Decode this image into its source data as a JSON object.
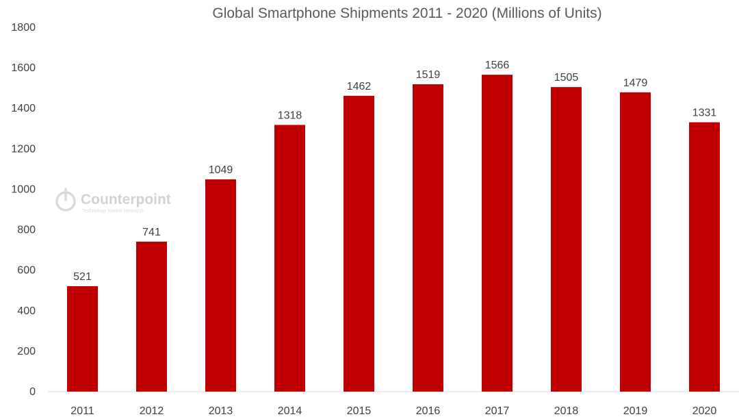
{
  "watermark": {
    "brand": "Counterpoint",
    "tagline": "Technology Market Research"
  },
  "chart_data": {
    "type": "bar",
    "title": "Global Smartphone Shipments 2011 - 2020 (Millions of Units)",
    "categories": [
      "2011",
      "2012",
      "2013",
      "2014",
      "2015",
      "2016",
      "2017",
      "2018",
      "2019",
      "2020"
    ],
    "values": [
      521,
      741,
      1049,
      1318,
      1462,
      1519,
      1566,
      1505,
      1479,
      1331
    ],
    "data_labels": [
      "521",
      "741",
      "1049",
      "1318",
      "1462",
      "1519",
      "1566",
      "1505",
      "1479",
      "1331"
    ],
    "y_ticks": [
      "0",
      "200",
      "400",
      "600",
      "800",
      "1000",
      "1200",
      "1400",
      "1600",
      "1800"
    ],
    "ylim": [
      0,
      1800
    ],
    "xlabel": "",
    "ylabel": "",
    "grid": false,
    "legend": "none",
    "bar_color": "#c00000",
    "axis_color": "#d9d9d9"
  }
}
